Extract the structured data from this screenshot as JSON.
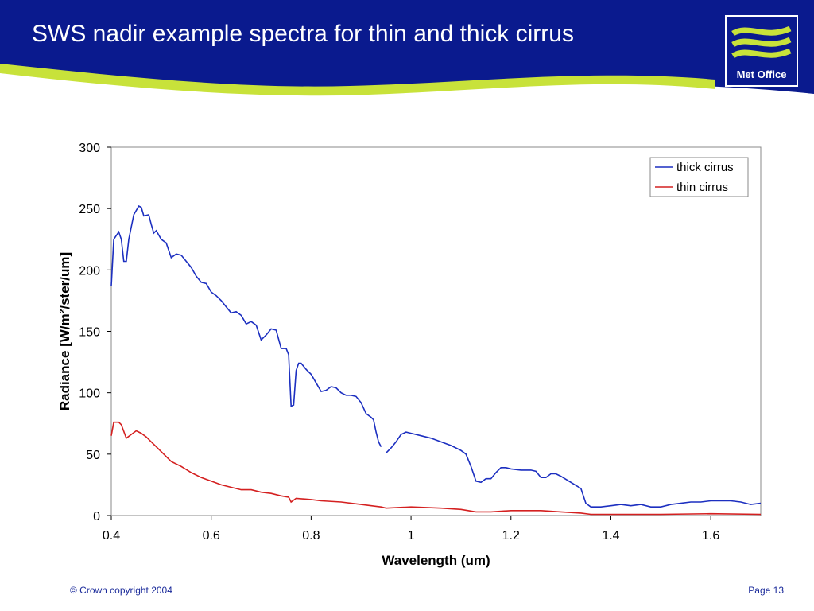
{
  "slide": {
    "logo_text": "Met Office",
    "footer_left": "© Crown copyright 2004",
    "footer_right": "Page 13"
  },
  "chart_data": {
    "type": "line",
    "title": "SWS nadir example spectra for thin and thick cirrus",
    "xlabel": "Wavelength (um)",
    "ylabel": "Radiance [W/m²/ster/um]",
    "xlim": [
      0.4,
      1.7
    ],
    "ylim": [
      0,
      300
    ],
    "xticks": [
      0.4,
      0.6,
      0.8,
      1,
      1.2,
      1.4,
      1.6
    ],
    "yticks": [
      0,
      50,
      100,
      150,
      200,
      250,
      300
    ],
    "grid": false,
    "legend": "upper right",
    "series": [
      {
        "name": "thick cirrus",
        "color": "#1c2fc0",
        "x": [
          0.4,
          0.405,
          0.41,
          0.415,
          0.42,
          0.425,
          0.43,
          0.435,
          0.445,
          0.455,
          0.46,
          0.465,
          0.475,
          0.48,
          0.485,
          0.49,
          0.5,
          0.51,
          0.52,
          0.53,
          0.54,
          0.55,
          0.56,
          0.57,
          0.58,
          0.59,
          0.6,
          0.61,
          0.62,
          0.63,
          0.64,
          0.65,
          0.66,
          0.67,
          0.68,
          0.69,
          0.7,
          0.71,
          0.72,
          0.73,
          0.74,
          0.75,
          0.755,
          0.76,
          0.765,
          0.77,
          0.775,
          0.78,
          0.79,
          0.8,
          0.81,
          0.82,
          0.83,
          0.84,
          0.85,
          0.86,
          0.87,
          0.88,
          0.89,
          0.9,
          0.91,
          0.92,
          0.925,
          0.93,
          0.935,
          0.94,
          0.945,
          0.95,
          0.96,
          0.97,
          0.98,
          0.99,
          1.0,
          1.02,
          1.04,
          1.06,
          1.08,
          1.1,
          1.11,
          1.12,
          1.13,
          1.14,
          1.15,
          1.16,
          1.17,
          1.18,
          1.19,
          1.2,
          1.22,
          1.24,
          1.25,
          1.26,
          1.27,
          1.28,
          1.29,
          1.3,
          1.32,
          1.34,
          1.35,
          1.36,
          1.38,
          1.4,
          1.42,
          1.44,
          1.46,
          1.48,
          1.5,
          1.52,
          1.54,
          1.56,
          1.58,
          1.6,
          1.62,
          1.64,
          1.66,
          1.68,
          1.7
        ],
        "values": [
          187,
          225,
          228,
          231,
          225,
          207,
          207,
          225,
          245,
          252,
          251,
          244,
          245,
          237,
          230,
          232,
          225,
          222,
          210,
          213,
          212,
          207,
          202,
          195,
          190,
          189,
          182,
          179,
          175,
          170,
          165,
          166,
          163,
          156,
          158,
          155,
          143,
          147,
          152,
          151,
          136,
          136,
          131,
          89,
          90,
          118,
          124,
          124,
          119,
          115,
          108,
          101,
          102,
          105,
          104,
          100,
          98,
          98,
          97,
          92,
          83,
          80,
          78,
          68,
          60,
          56,
          null,
          51,
          55,
          60,
          66,
          68,
          67,
          65,
          63,
          60,
          57,
          53,
          50,
          40,
          28,
          27,
          30,
          30,
          35,
          39,
          39,
          38,
          37,
          37,
          36,
          31,
          31,
          34,
          34,
          32,
          27,
          22,
          10,
          7,
          7,
          8,
          9,
          8,
          9,
          7,
          7,
          9,
          10,
          11,
          11,
          12,
          12,
          12,
          11,
          9,
          10
        ]
      },
      {
        "name": "thin cirrus",
        "color": "#d42020",
        "x": [
          0.4,
          0.405,
          0.415,
          0.42,
          0.43,
          0.44,
          0.45,
          0.46,
          0.47,
          0.48,
          0.49,
          0.5,
          0.52,
          0.54,
          0.56,
          0.58,
          0.6,
          0.62,
          0.64,
          0.66,
          0.68,
          0.7,
          0.72,
          0.74,
          0.755,
          0.76,
          0.77,
          0.8,
          0.82,
          0.86,
          0.9,
          0.94,
          0.95,
          1.0,
          1.06,
          1.1,
          1.13,
          1.16,
          1.2,
          1.26,
          1.3,
          1.34,
          1.36,
          1.5,
          1.6,
          1.7
        ],
        "values": [
          65,
          76,
          76,
          74,
          63,
          66,
          69,
          67,
          64,
          60,
          56,
          52,
          44,
          40,
          35,
          31,
          28,
          25,
          23,
          21,
          21,
          19,
          18,
          16,
          15,
          11,
          14,
          13,
          12,
          11,
          9,
          7,
          6,
          7,
          6,
          5,
          3,
          3,
          4,
          4,
          3,
          2,
          1,
          1,
          1.5,
          1
        ]
      }
    ]
  }
}
